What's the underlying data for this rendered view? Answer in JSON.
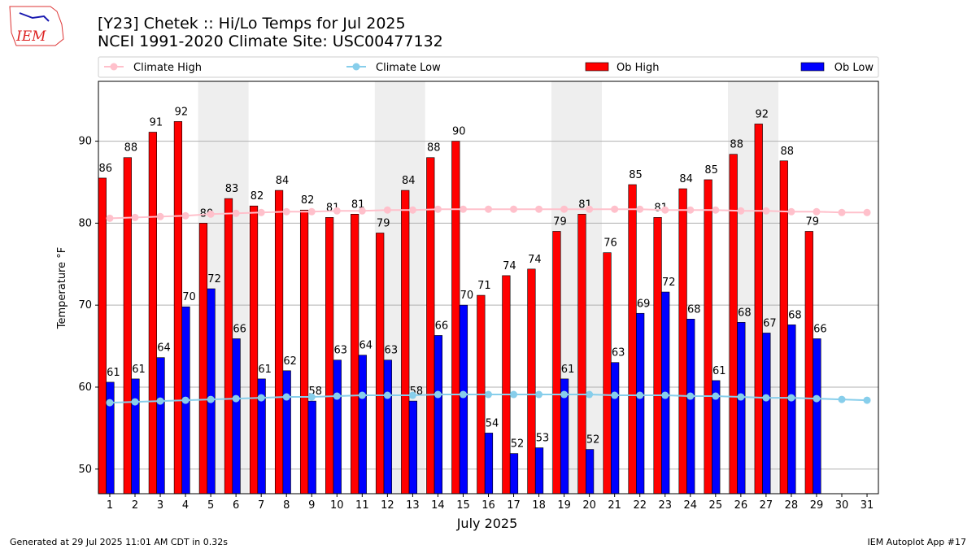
{
  "logo_text": "IEM",
  "footer_left": "Generated at 29 Jul 2025 11:01 AM CDT in 0.32s",
  "footer_right": "IEM Autoplot App #17",
  "chart_data": {
    "type": "bar",
    "title": "[Y23] Chetek :: Hi/Lo Temps for Jul 2025",
    "subtitle": "NCEI 1991-2020 Climate Site: USC00477132",
    "xlabel": "July 2025",
    "ylabel": "Temperature °F",
    "x": [
      1,
      2,
      3,
      4,
      5,
      6,
      7,
      8,
      9,
      10,
      11,
      12,
      13,
      14,
      15,
      16,
      17,
      18,
      19,
      20,
      21,
      22,
      23,
      24,
      25,
      26,
      27,
      28,
      29,
      30,
      31
    ],
    "xlim": [
      0.55,
      31.45
    ],
    "ylim": [
      47,
      97.3
    ],
    "yticks": [
      50,
      60,
      70,
      80,
      90
    ],
    "grid": true,
    "legend": "top",
    "series": [
      {
        "name": "Climate High",
        "type": "line",
        "color": "#ffc0cb",
        "values": [
          80.6,
          80.7,
          80.8,
          80.9,
          81.1,
          81.2,
          81.3,
          81.4,
          81.4,
          81.5,
          81.5,
          81.6,
          81.6,
          81.7,
          81.7,
          81.7,
          81.7,
          81.7,
          81.7,
          81.7,
          81.7,
          81.7,
          81.6,
          81.6,
          81.6,
          81.5,
          81.5,
          81.4,
          81.4,
          81.3,
          81.3
        ]
      },
      {
        "name": "Climate Low",
        "type": "line",
        "color": "#87ceeb",
        "values": [
          58.1,
          58.2,
          58.3,
          58.4,
          58.5,
          58.6,
          58.7,
          58.8,
          58.8,
          58.9,
          59.0,
          59.0,
          59.0,
          59.1,
          59.1,
          59.1,
          59.1,
          59.1,
          59.1,
          59.1,
          59.0,
          59.0,
          59.0,
          58.9,
          58.9,
          58.8,
          58.7,
          58.7,
          58.6,
          58.5,
          58.4
        ]
      },
      {
        "name": "Ob High",
        "type": "bar",
        "color": "#ff0000",
        "values": [
          85.5,
          88.0,
          91.1,
          92.4,
          80.0,
          83.0,
          82.1,
          84.0,
          81.6,
          80.7,
          81.1,
          78.8,
          84.0,
          88.0,
          90.0,
          71.2,
          73.6,
          74.4,
          79.0,
          81.1,
          76.4,
          84.7,
          80.7,
          84.2,
          85.3,
          88.4,
          92.1,
          87.6,
          79.0,
          null,
          null
        ],
        "value_labels": [
          "86",
          "88",
          "91",
          "92",
          "80",
          "83",
          "82",
          "84",
          "82",
          "81",
          "81",
          "79",
          "84",
          "88",
          "90",
          "71",
          "74",
          "74",
          "79",
          "81",
          "76",
          "85",
          "81",
          "84",
          "85",
          "88",
          "92",
          "88",
          "79",
          null,
          null
        ]
      },
      {
        "name": "Ob Low",
        "type": "bar",
        "color": "#0000ff",
        "values": [
          60.6,
          61.0,
          63.6,
          69.8,
          72.0,
          65.9,
          61.0,
          62.0,
          58.3,
          63.3,
          63.9,
          63.3,
          58.3,
          66.3,
          70.0,
          54.4,
          51.9,
          52.6,
          61.0,
          52.4,
          63.0,
          69.0,
          71.6,
          68.3,
          60.8,
          67.9,
          66.6,
          67.6,
          65.9,
          null,
          null
        ],
        "value_labels": [
          "61",
          "61",
          "64",
          "70",
          "72",
          "66",
          "61",
          "62",
          "58",
          "63",
          "64",
          "63",
          "58",
          "66",
          "70",
          "54",
          "52",
          "53",
          "61",
          "52",
          "63",
          "69",
          "72",
          "68",
          "61",
          "68",
          "67",
          "68",
          "66",
          null,
          null
        ]
      }
    ]
  }
}
